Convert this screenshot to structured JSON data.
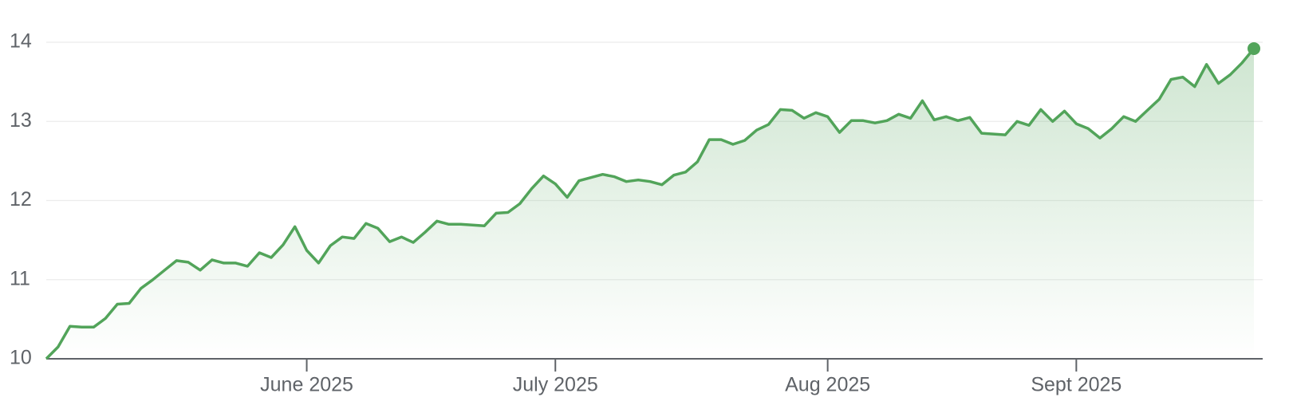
{
  "chart_data": {
    "type": "line",
    "categories": [
      null,
      null,
      null,
      null,
      null,
      null,
      null,
      null,
      null,
      null,
      null,
      null,
      null,
      null,
      null,
      null,
      null,
      null,
      null,
      null,
      null,
      null,
      "June 2025",
      null,
      null,
      null,
      null,
      null,
      null,
      null,
      null,
      null,
      null,
      null,
      null,
      null,
      null,
      null,
      null,
      null,
      null,
      null,
      null,
      "July 2025",
      null,
      null,
      null,
      null,
      null,
      null,
      null,
      null,
      null,
      null,
      null,
      null,
      null,
      null,
      null,
      null,
      null,
      null,
      null,
      null,
      null,
      null,
      "Aug 2025",
      null,
      null,
      null,
      null,
      null,
      null,
      null,
      null,
      null,
      null,
      null,
      null,
      null,
      null,
      null,
      null,
      null,
      null,
      null,
      null,
      "Sept 2025",
      null,
      null,
      null,
      null,
      null,
      null,
      null,
      null,
      null,
      null,
      null,
      null,
      null,
      null,
      null
    ],
    "values": [
      10.0,
      10.15,
      10.41,
      10.4,
      10.4,
      10.51,
      10.69,
      10.7,
      10.89,
      11.0,
      11.12,
      11.24,
      11.22,
      11.12,
      11.25,
      11.21,
      11.21,
      11.17,
      11.34,
      11.28,
      11.44,
      11.67,
      11.37,
      11.21,
      11.43,
      11.54,
      11.52,
      11.71,
      11.65,
      11.48,
      11.54,
      11.47,
      11.6,
      11.74,
      11.7,
      11.7,
      11.69,
      11.68,
      11.84,
      11.85,
      11.96,
      12.15,
      12.31,
      12.21,
      12.04,
      12.25,
      12.29,
      12.33,
      12.3,
      12.24,
      12.26,
      12.24,
      12.2,
      12.32,
      12.36,
      12.49,
      12.77,
      12.77,
      12.71,
      12.76,
      12.89,
      12.96,
      13.15,
      13.14,
      13.04,
      13.11,
      13.06,
      12.86,
      13.01,
      13.01,
      12.98,
      13.01,
      13.09,
      13.04,
      13.26,
      13.02,
      13.06,
      13.01,
      13.05,
      12.85,
      12.84,
      12.83,
      13.0,
      12.95,
      13.15,
      13.0,
      13.13,
      12.97,
      12.91,
      12.79,
      12.91,
      13.06,
      13.0,
      13.14,
      13.28,
      13.53,
      13.56,
      13.44,
      13.72,
      13.48,
      13.59,
      13.74,
      13.92
    ],
    "color": "#52a45a",
    "ylim": [
      10,
      14
    ],
    "yticks": [
      10,
      11,
      12,
      13,
      14
    ],
    "grid": true
  }
}
